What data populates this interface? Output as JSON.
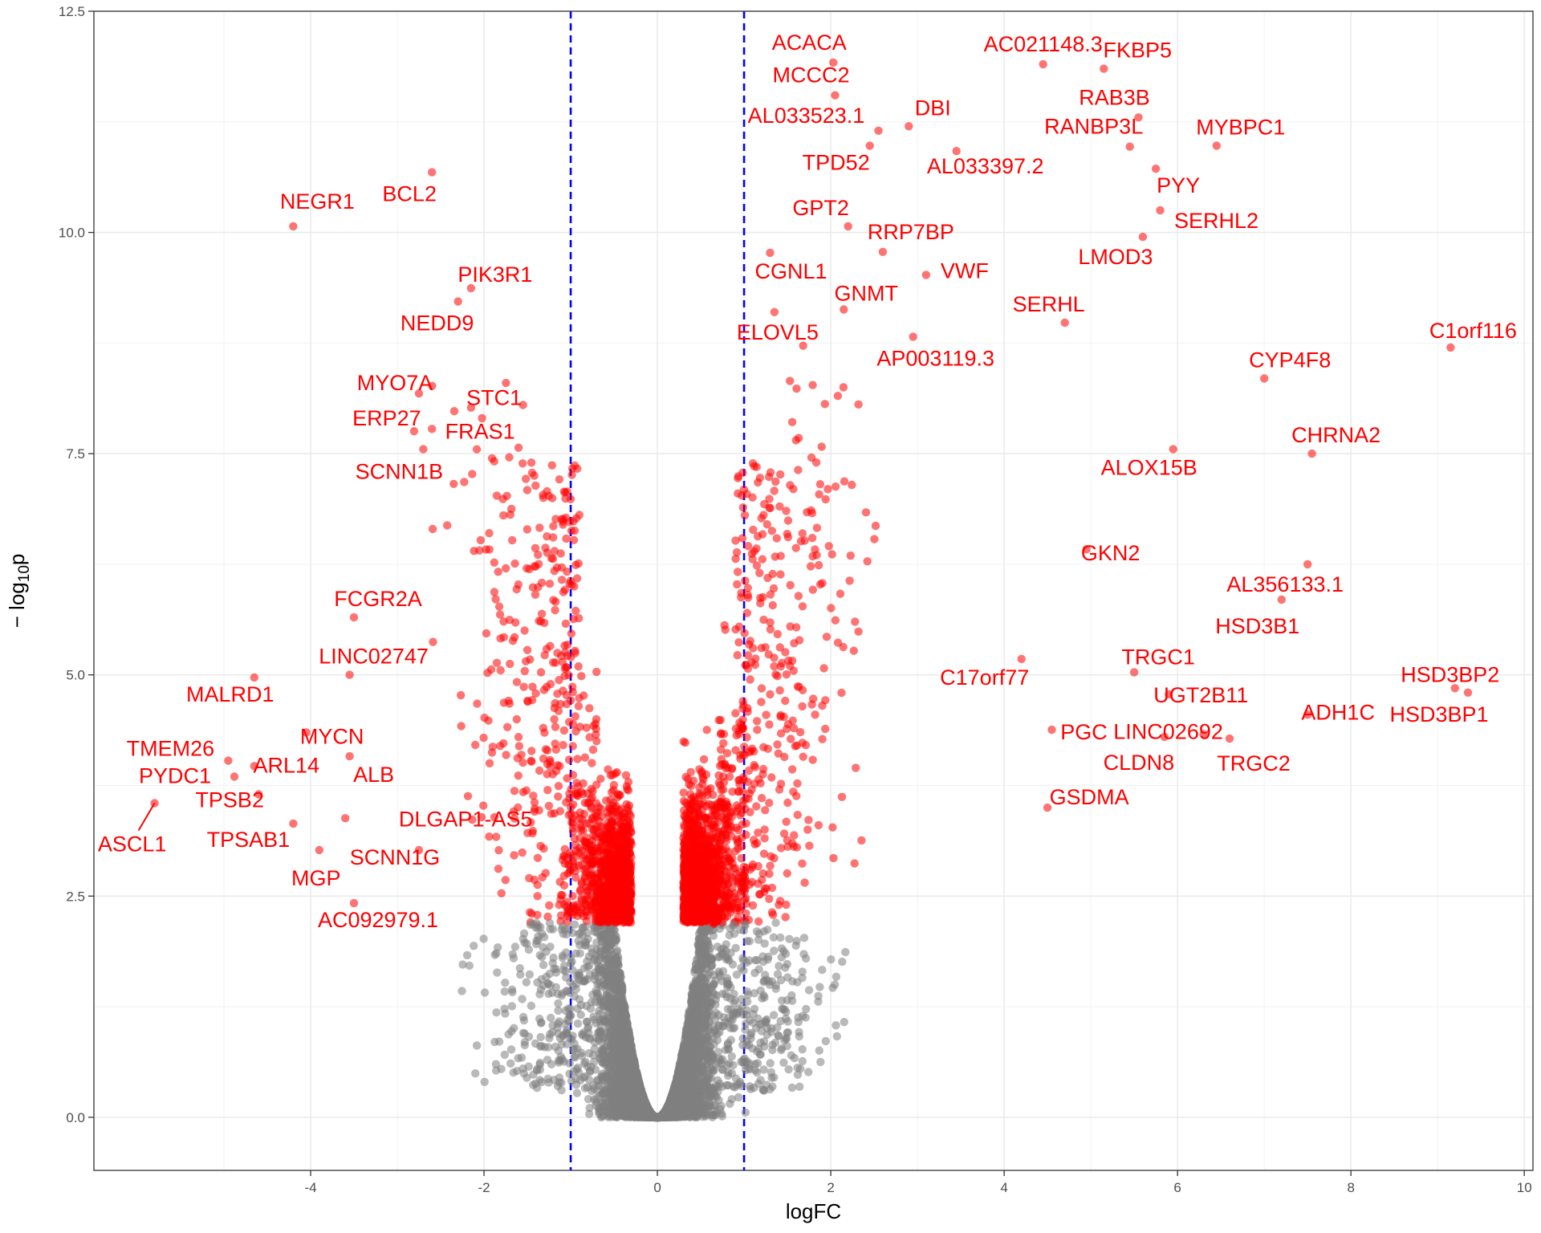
{
  "chart_data": {
    "type": "scatter",
    "xlabel": "logFC",
    "ylabel": "− log",
    "ylabel_subscript": "10",
    "ylabel_suffix": "p",
    "xlim": [
      -6.5,
      10.1
    ],
    "ylim": [
      -0.6,
      12.5
    ],
    "x_ticks": [
      -4,
      -2,
      0,
      2,
      4,
      6,
      8,
      10
    ],
    "y_ticks": [
      0.0,
      2.5,
      5.0,
      7.5,
      10.0,
      12.5
    ],
    "x_tick_labels": [
      "-4",
      "-2",
      "0",
      "2",
      "4",
      "6",
      "8",
      "10"
    ],
    "y_tick_labels": [
      "0.0",
      "2.5",
      "5.0",
      "7.5",
      "10.0",
      "12.5"
    ],
    "grid": true,
    "thresholds": {
      "logFC": [
        -1,
        1
      ],
      "color": "#0000ff",
      "style": "dashed"
    },
    "colors": {
      "significant": "#ff0000",
      "not_significant": "#7f7f7f",
      "label": "#ff0000"
    },
    "significance_cutoff_neglog10p": 2.2,
    "labeled_points": [
      {
        "gene": "ACACA",
        "x": 2.03,
        "y": 11.92
      },
      {
        "gene": "MCCC2",
        "x": 2.05,
        "y": 11.55
      },
      {
        "gene": "AL033523.1",
        "x": 2.55,
        "y": 11.15
      },
      {
        "gene": "TPD52",
        "x": 2.45,
        "y": 10.98
      },
      {
        "gene": "DBI",
        "x": 2.9,
        "y": 11.2
      },
      {
        "gene": "AC021148.3",
        "x": 4.45,
        "y": 11.9
      },
      {
        "gene": "FKBP5",
        "x": 5.15,
        "y": 11.85
      },
      {
        "gene": "RAB3B",
        "x": 5.55,
        "y": 11.3
      },
      {
        "gene": "RANBP3L",
        "x": 5.45,
        "y": 10.97
      },
      {
        "gene": "MYBPC1",
        "x": 6.45,
        "y": 10.98
      },
      {
        "gene": "AL033397.2",
        "x": 3.45,
        "y": 10.92
      },
      {
        "gene": "PYY",
        "x": 5.75,
        "y": 10.72
      },
      {
        "gene": "SERHL2",
        "x": 5.8,
        "y": 10.25
      },
      {
        "gene": "GPT2",
        "x": 2.2,
        "y": 10.07
      },
      {
        "gene": "RRP7BP",
        "x": 2.6,
        "y": 9.78
      },
      {
        "gene": "LMOD3",
        "x": 5.6,
        "y": 9.95
      },
      {
        "gene": "VWF",
        "x": 3.1,
        "y": 9.52
      },
      {
        "gene": "CGNL1",
        "x": 1.3,
        "y": 9.77
      },
      {
        "gene": "GNMT",
        "x": 2.15,
        "y": 9.13
      },
      {
        "gene": "SERHL",
        "x": 4.7,
        "y": 8.98
      },
      {
        "gene": "ELOVL5",
        "x": 1.35,
        "y": 9.1
      },
      {
        "gene": "AP003119.3",
        "x": 2.95,
        "y": 8.82
      },
      {
        "gene": "C1orf116",
        "x": 9.15,
        "y": 8.7
      },
      {
        "gene": "CYP4F8",
        "x": 7.0,
        "y": 8.35
      },
      {
        "gene": "CHRNA2",
        "x": 7.55,
        "y": 7.5
      },
      {
        "gene": "ALOX15B",
        "x": 5.95,
        "y": 7.55
      },
      {
        "gene": "GKN2",
        "x": 4.95,
        "y": 6.42
      },
      {
        "gene": "AL356133.1",
        "x": 7.5,
        "y": 6.25
      },
      {
        "gene": "HSD3B1",
        "x": 7.2,
        "y": 5.85
      },
      {
        "gene": "TRGC1",
        "x": 5.5,
        "y": 5.03
      },
      {
        "gene": "C17orf77",
        "x": 4.2,
        "y": 5.18
      },
      {
        "gene": "UGT2B11",
        "x": 5.9,
        "y": 4.78
      },
      {
        "gene": "HSD3BP2",
        "x": 9.2,
        "y": 4.85
      },
      {
        "gene": "HSD3BP1",
        "x": 9.35,
        "y": 4.8
      },
      {
        "gene": "ADH1C",
        "x": 7.5,
        "y": 4.55
      },
      {
        "gene": "PGC",
        "x": 4.55,
        "y": 4.38
      },
      {
        "gene": "LINC02692",
        "x": 6.3,
        "y": 4.33
      },
      {
        "gene": "CLDN8",
        "x": 5.85,
        "y": 4.3
      },
      {
        "gene": "TRGC2",
        "x": 6.6,
        "y": 4.28
      },
      {
        "gene": "GSDMA",
        "x": 4.5,
        "y": 3.5
      },
      {
        "gene": "NEGR1",
        "x": -4.2,
        "y": 10.07
      },
      {
        "gene": "BCL2",
        "x": -2.6,
        "y": 10.68
      },
      {
        "gene": "PIK3R1",
        "x": -2.15,
        "y": 9.37
      },
      {
        "gene": "NEDD9",
        "x": -2.3,
        "y": 9.22
      },
      {
        "gene": "MYO7A",
        "x": -2.75,
        "y": 8.18
      },
      {
        "gene": "STC1",
        "x": -1.55,
        "y": 8.05
      },
      {
        "gene": "ERP27",
        "x": -2.15,
        "y": 8.02
      },
      {
        "gene": "FRAS1",
        "x": -2.6,
        "y": 7.78
      },
      {
        "gene": "SCNN1B",
        "x": -2.7,
        "y": 7.55
      },
      {
        "gene": "FCGR2A",
        "x": -3.5,
        "y": 5.65
      },
      {
        "gene": "LINC02747",
        "x": -3.55,
        "y": 5.0
      },
      {
        "gene": "MALRD1",
        "x": -4.65,
        "y": 4.97
      },
      {
        "gene": "MYCN",
        "x": -4.05,
        "y": 4.35
      },
      {
        "gene": "TMEM26",
        "x": -4.95,
        "y": 4.03
      },
      {
        "gene": "ARL14",
        "x": -4.65,
        "y": 3.97
      },
      {
        "gene": "ALB",
        "x": -3.55,
        "y": 4.08
      },
      {
        "gene": "PYDC1",
        "x": -4.88,
        "y": 3.85
      },
      {
        "gene": "TPSB2",
        "x": -4.6,
        "y": 3.65
      },
      {
        "gene": "DLGAP1-AS5",
        "x": -3.6,
        "y": 3.38
      },
      {
        "gene": "ASCL1",
        "x": -5.8,
        "y": 3.55
      },
      {
        "gene": "TPSAB1",
        "x": -4.2,
        "y": 3.32
      },
      {
        "gene": "SCNN1G",
        "x": -2.75,
        "y": 3.02
      },
      {
        "gene": "MGP",
        "x": -3.9,
        "y": 3.02
      },
      {
        "gene": "AC092979.1",
        "x": -3.5,
        "y": 2.42
      }
    ]
  }
}
